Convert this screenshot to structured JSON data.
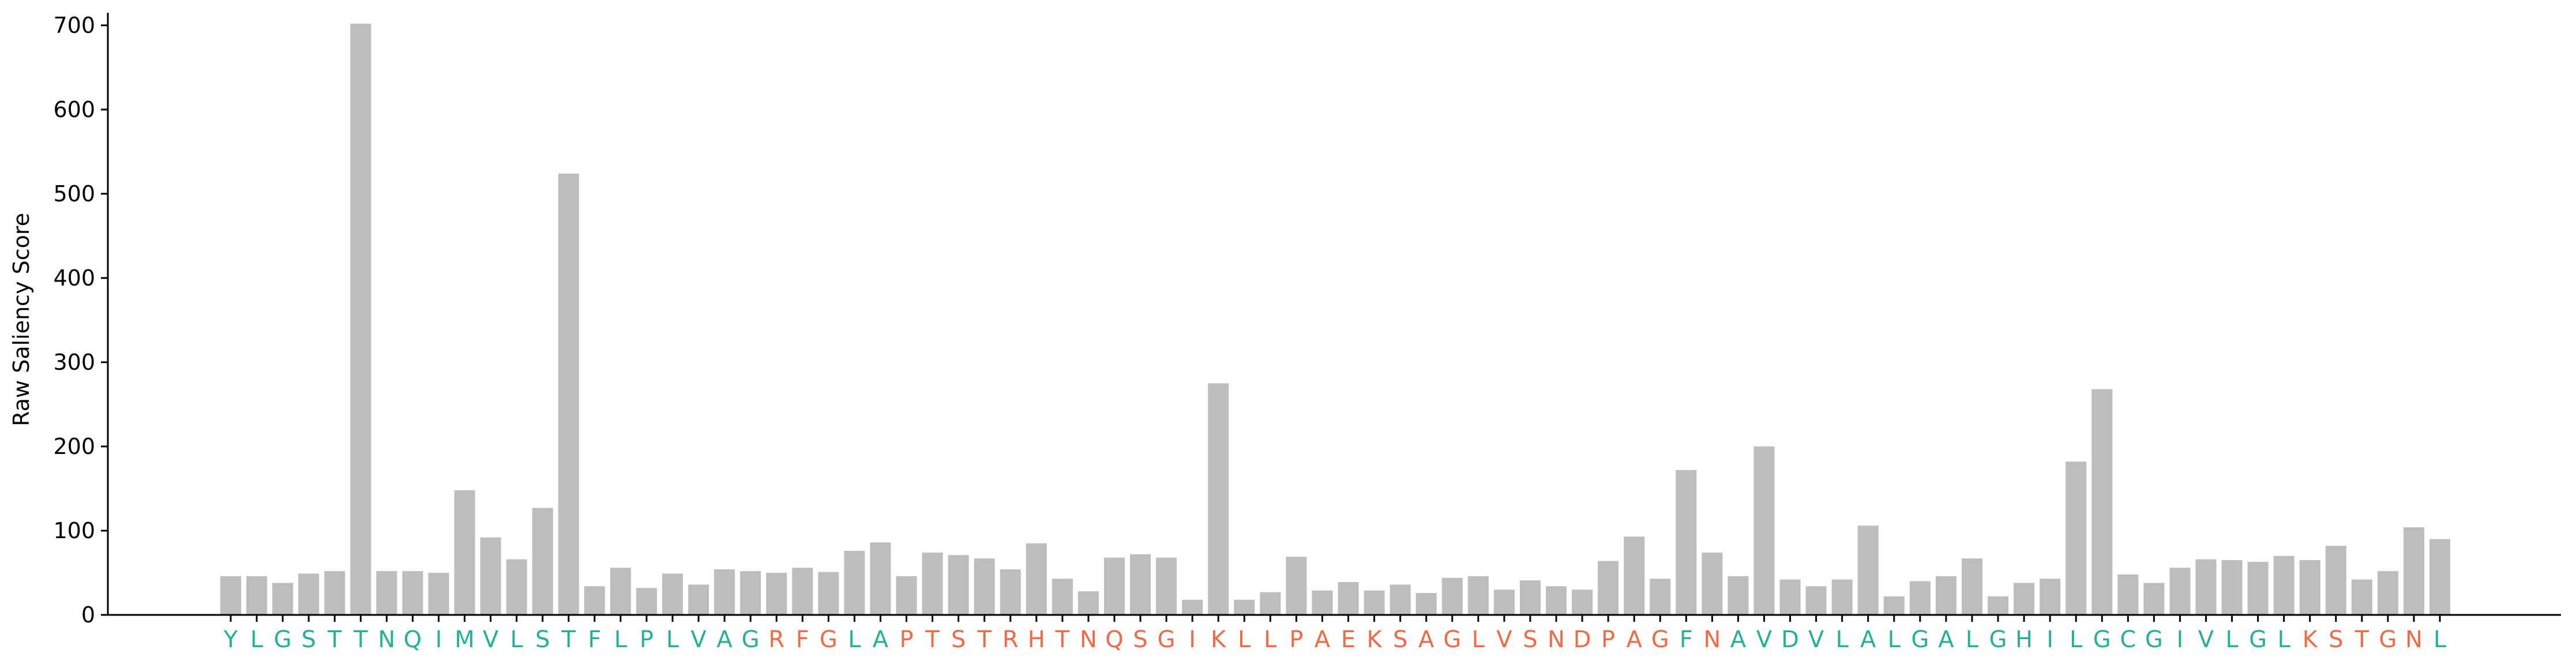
{
  "chart_data": {
    "type": "bar",
    "title": "",
    "xlabel": "",
    "ylabel": "Raw Saliency Score",
    "ylim": [
      0,
      715
    ],
    "yticks": [
      0,
      100,
      200,
      300,
      400,
      500,
      600,
      700
    ],
    "grid": false,
    "legend": "none",
    "bar_color": "#bdbdbd",
    "label_colors": {
      "T": "#26b09a",
      "F": "#ef6a45"
    },
    "categories": [
      "Y",
      "L",
      "G",
      "S",
      "T",
      "T",
      "N",
      "Q",
      "I",
      "M",
      "V",
      "L",
      "S",
      "T",
      "F",
      "L",
      "P",
      "L",
      "V",
      "A",
      "G",
      "R",
      "F",
      "G",
      "L",
      "A",
      "P",
      "T",
      "S",
      "T",
      "R",
      "H",
      "T",
      "N",
      "Q",
      "S",
      "G",
      "I",
      "K",
      "L",
      "L",
      "P",
      "A",
      "E",
      "K",
      "S",
      "A",
      "G",
      "L",
      "V",
      "S",
      "N",
      "D",
      "P",
      "A",
      "G",
      "F",
      "N",
      "A",
      "V",
      "D",
      "V",
      "L",
      "A",
      "L",
      "G",
      "A",
      "L",
      "G",
      "H",
      "I",
      "L",
      "G",
      "C",
      "G",
      "I",
      "V",
      "L",
      "G",
      "L",
      "K",
      "S",
      "T",
      "G",
      "N",
      "L"
    ],
    "label_groups": [
      "T",
      "T",
      "T",
      "T",
      "T",
      "T",
      "T",
      "T",
      "T",
      "T",
      "T",
      "T",
      "T",
      "T",
      "T",
      "T",
      "T",
      "T",
      "T",
      "T",
      "T",
      "F",
      "F",
      "F",
      "T",
      "T",
      "F",
      "F",
      "F",
      "F",
      "F",
      "F",
      "F",
      "F",
      "F",
      "F",
      "F",
      "F",
      "F",
      "F",
      "F",
      "F",
      "F",
      "F",
      "F",
      "F",
      "F",
      "F",
      "F",
      "F",
      "F",
      "F",
      "F",
      "F",
      "F",
      "F",
      "T",
      "F",
      "T",
      "T",
      "T",
      "T",
      "T",
      "T",
      "T",
      "T",
      "T",
      "T",
      "T",
      "T",
      "T",
      "T",
      "T",
      "T",
      "T",
      "T",
      "T",
      "T",
      "T",
      "T",
      "F",
      "F",
      "F",
      "F",
      "F",
      "T"
    ],
    "values": [
      46,
      46,
      38,
      49,
      52,
      702,
      52,
      52,
      50,
      148,
      92,
      66,
      127,
      524,
      34,
      56,
      32,
      49,
      36,
      54,
      52,
      50,
      56,
      51,
      76,
      86,
      46,
      74,
      71,
      67,
      54,
      85,
      43,
      28,
      68,
      72,
      68,
      18,
      275,
      18,
      27,
      69,
      29,
      39,
      29,
      36,
      26,
      44,
      46,
      30,
      41,
      34,
      30,
      64,
      93,
      43,
      172,
      74,
      46,
      200,
      42,
      34,
      42,
      106,
      22,
      40,
      46,
      67,
      22,
      38,
      43,
      182,
      268,
      48,
      38,
      56,
      66,
      65,
      63,
      70,
      65,
      82,
      42,
      52,
      104,
      90
    ]
  }
}
